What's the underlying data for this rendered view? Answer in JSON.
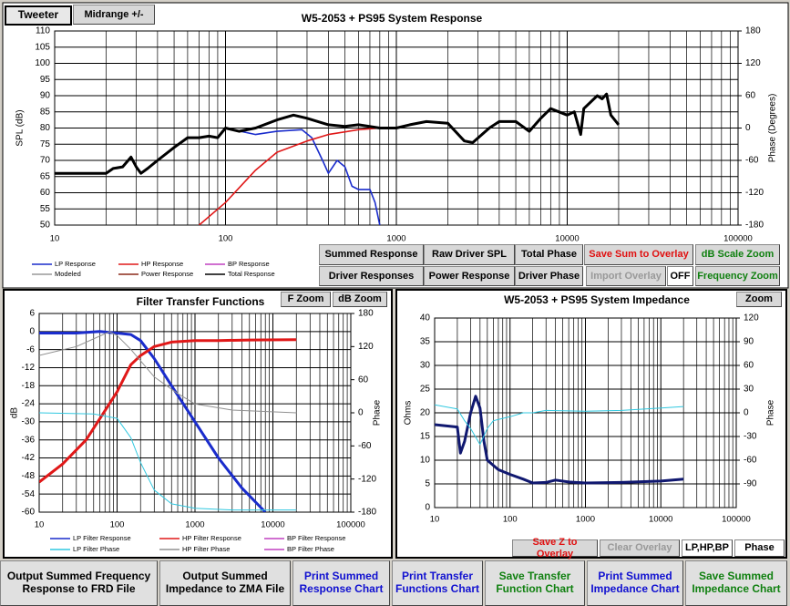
{
  "ui": {
    "tabs": [
      "Tweeter",
      "Midrange +/-"
    ],
    "response_buttons": [
      "Summed Response",
      "Raw Driver SPL",
      "Total Phase",
      "Save Sum to Overlay",
      "dB Scale Zoom",
      "Driver Responses",
      "Power Response",
      "Driver Phase",
      "Import Overlay",
      "OFF",
      "Frequency Zoom"
    ],
    "filter_buttons": [
      "F Zoom",
      "dB Zoom"
    ],
    "impedance_top_button": "Zoom",
    "impedance_buttons": [
      "Save Z to Overlay",
      "Clear Overlay",
      "LP,HP,BP",
      "Phase"
    ],
    "bottom_buttons": [
      "Output Summed Frequency Response to FRD File",
      "Output Summed Impedance to ZMA File",
      "Print Summed Response Chart",
      "Print Transfer Functions Chart",
      "Save Transfer Function Chart",
      "Print Summed Impedance Chart",
      "Save Summed Impedance Chart"
    ]
  },
  "chart_data": [
    {
      "type": "line",
      "title": "W5-2053 + PS95   System Response",
      "ylabel": "SPL (dB)",
      "y2label": "Phase (Degrees)",
      "xscale": "log",
      "grid": true,
      "xlim": [
        10,
        100000
      ],
      "xticks": [
        10,
        100,
        1000,
        10000,
        100000
      ],
      "ylim": [
        50,
        110
      ],
      "yticks": [
        50,
        55,
        60,
        65,
        70,
        75,
        80,
        85,
        90,
        95,
        100,
        105,
        110
      ],
      "y2lim": [
        -180,
        180
      ],
      "y2ticks": [
        -180,
        -120,
        -60,
        0,
        60,
        120,
        180
      ],
      "series": [
        {
          "name": "LP Response",
          "color": "#1a2ccc",
          "line_width": 1.6,
          "x": [
            100,
            150,
            200,
            280,
            320,
            370,
            400,
            450,
            500,
            550,
            600,
            700,
            750,
            800
          ],
          "values": [
            80,
            78,
            79,
            79.5,
            77,
            70,
            66,
            70,
            68,
            62,
            61,
            61,
            57,
            50
          ]
        },
        {
          "name": "HP Response",
          "color": "#e01818",
          "line_width": 1.6,
          "x": [
            70,
            100,
            150,
            200,
            300,
            400,
            600,
            800
          ],
          "values": [
            50,
            57,
            67,
            72.5,
            76,
            78,
            79.5,
            80
          ]
        },
        {
          "name": "BP Response",
          "color": "#c040c0",
          "line_width": 1,
          "x": [],
          "values": []
        },
        {
          "name": "Modeled",
          "color": "#999999",
          "line_width": 1,
          "x": [],
          "values": []
        },
        {
          "name": "Power Response",
          "color": "#8b2a1a",
          "line_width": 1,
          "x": [],
          "values": []
        },
        {
          "name": "Total Response",
          "color": "#000000",
          "line_width": 3,
          "x": [
            10,
            20,
            22,
            25,
            28,
            30,
            32,
            35,
            40,
            50,
            60,
            70,
            80,
            90,
            100,
            120,
            150,
            200,
            250,
            300,
            400,
            500,
            600,
            800,
            1000,
            1200,
            1500,
            2000,
            2500,
            2800,
            3500,
            4000,
            5000,
            6000,
            7000,
            8000,
            10000,
            11000,
            12000,
            12500,
            15000,
            16000,
            17000,
            18000,
            20000
          ],
          "values": [
            66,
            66,
            67.5,
            68,
            71,
            68,
            66,
            67.5,
            70,
            74,
            77,
            77,
            77.5,
            77,
            80,
            79,
            80,
            82.5,
            84,
            83,
            81,
            80.5,
            81,
            80,
            80,
            81,
            82,
            81.5,
            76,
            75.5,
            80,
            82,
            82,
            79,
            83,
            86,
            84,
            85,
            78,
            86,
            90,
            89,
            90.5,
            84,
            81
          ]
        }
      ]
    },
    {
      "type": "line",
      "title": "Filter Transfer Functions",
      "ylabel": "dB",
      "y2label": "Phase",
      "xscale": "log",
      "grid": true,
      "xlim": [
        10,
        100000
      ],
      "xticks": [
        10,
        100,
        1000,
        10000,
        100000
      ],
      "ylim": [
        -60,
        6
      ],
      "yticks": [
        -60,
        -54,
        -48,
        -42,
        -36,
        -30,
        -24,
        -18,
        -12,
        -6,
        0,
        6
      ],
      "y2lim": [
        -180,
        180
      ],
      "y2ticks": [
        -180,
        -120,
        -60,
        0,
        60,
        120,
        180
      ],
      "series": [
        {
          "name": "LP Filter Response",
          "color": "#1a2ccc",
          "line_width": 3,
          "x": [
            10,
            30,
            60,
            100,
            150,
            200,
            300,
            500,
            1000,
            2000,
            4000,
            8000
          ],
          "values": [
            -0.5,
            -0.5,
            0,
            -0.5,
            -1,
            -3,
            -9,
            -18,
            -30,
            -42,
            -52,
            -60
          ]
        },
        {
          "name": "HP Filter Response",
          "color": "#e01818",
          "line_width": 3,
          "x": [
            10,
            20,
            40,
            60,
            100,
            150,
            200,
            300,
            500,
            1000,
            2000,
            5000,
            20000
          ],
          "values": [
            -50,
            -44,
            -36,
            -29,
            -20,
            -11,
            -8,
            -5,
            -3.5,
            -3,
            -3,
            -2.8,
            -2.7
          ]
        },
        {
          "name": "BP Filter Response",
          "color": "#c040c0",
          "line_width": 1,
          "x": [],
          "values": []
        },
        {
          "name": "LP Filter Phase",
          "color": "#30c8e0",
          "line_width": 1,
          "axis": "y2",
          "x": [
            10,
            50,
            100,
            150,
            200,
            300,
            500,
            1000,
            3000,
            10000,
            20000
          ],
          "values": [
            0,
            -2,
            -10,
            -45,
            -90,
            -140,
            -165,
            -173,
            -176,
            -176,
            -176
          ]
        },
        {
          "name": "HP Filter Phase",
          "color": "#909090",
          "line_width": 1,
          "axis": "y2",
          "x": [
            10,
            30,
            80,
            100,
            150,
            300,
            600,
            1000,
            3000,
            20000
          ],
          "values": [
            104,
            120,
            147,
            140,
            115,
            65,
            35,
            16,
            5,
            0
          ]
        },
        {
          "name": "BP Filter Phase",
          "color": "#c040c0",
          "line_width": 1,
          "axis": "y2",
          "x": [],
          "values": []
        }
      ]
    },
    {
      "type": "line",
      "title": "W5-2053 + PS95   System Impedance",
      "ylabel": "Ohms",
      "y2label": "Phase",
      "xscale": "log",
      "grid": true,
      "xlim": [
        10,
        100000
      ],
      "xticks": [
        10,
        100,
        1000,
        10000,
        100000
      ],
      "ylim": [
        0,
        40
      ],
      "yticks": [
        0,
        5,
        10,
        15,
        20,
        25,
        30,
        35,
        40
      ],
      "y2lim": [
        -120,
        120
      ],
      "y2ticks": [
        -90,
        -60,
        -30,
        0,
        30,
        60,
        90,
        120
      ],
      "series": [
        {
          "color": "#101870",
          "line_width": 3,
          "x": [
            10,
            20,
            22,
            25,
            30,
            35,
            40,
            45,
            50,
            70,
            100,
            150,
            200,
            300,
            400,
            600,
            1000,
            3000,
            10000,
            20000
          ],
          "values": [
            17.5,
            17,
            11.5,
            14,
            20,
            23.5,
            21,
            14,
            10,
            8,
            7,
            6,
            5.2,
            5.3,
            5.8,
            5.4,
            5.2,
            5.3,
            5.6,
            6
          ]
        },
        {
          "color": "#30c8e0",
          "line_width": 1,
          "axis": "y2",
          "x": [
            10,
            20,
            25,
            30,
            40,
            50,
            60,
            80,
            100,
            150,
            200,
            300,
            1000,
            3000,
            10000,
            20000
          ],
          "values": [
            10,
            5,
            -10,
            -20,
            -40,
            -20,
            -10,
            -7,
            -5,
            0,
            0,
            3,
            2,
            3,
            6,
            8
          ]
        }
      ]
    }
  ]
}
